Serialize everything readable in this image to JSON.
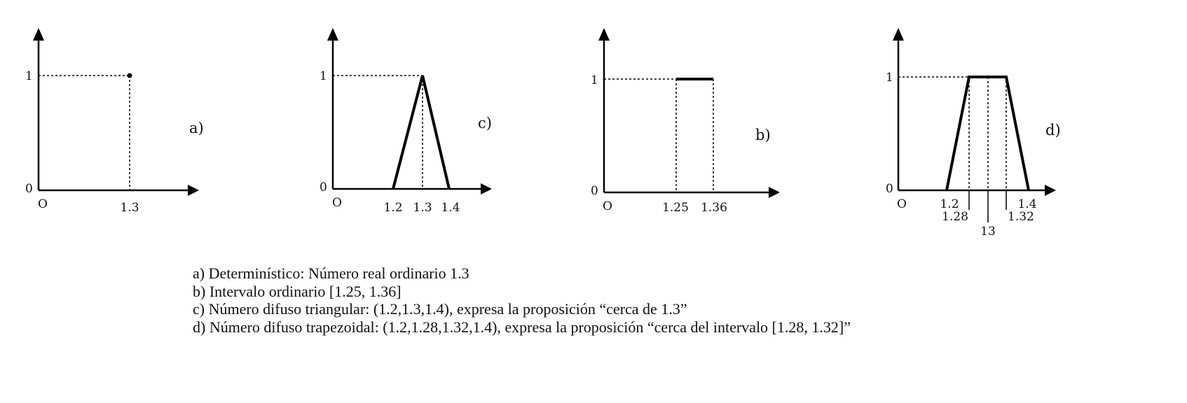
{
  "panels": {
    "a": {
      "tag": "a)",
      "y_top": "1",
      "y_zero": "0",
      "origin": "O",
      "x_labels": [
        "1.3"
      ],
      "kind": "crisp point",
      "points": [
        [
          1.3,
          1
        ]
      ]
    },
    "c": {
      "tag": "c)",
      "y_top": "1",
      "y_zero": "0",
      "origin": "O",
      "x_labels": [
        "1.2",
        "1.3",
        "1.4"
      ],
      "kind": "triangular",
      "points": [
        [
          1.2,
          0
        ],
        [
          1.3,
          1
        ],
        [
          1.4,
          0
        ]
      ]
    },
    "b": {
      "tag": "b)",
      "y_top": "1",
      "y_zero": "0",
      "origin": "O",
      "x_labels": [
        "1.25",
        "1.36"
      ],
      "kind": "interval",
      "points": [
        [
          1.25,
          1
        ],
        [
          1.36,
          1
        ]
      ]
    },
    "d": {
      "tag": "d)",
      "y_top": "1",
      "y_zero": "0",
      "origin": "O",
      "x_labels": [
        "1.2",
        "1.28",
        "1.32",
        "1.4",
        "13"
      ],
      "kind": "trapezoidal",
      "points": [
        [
          1.2,
          0
        ],
        [
          1.28,
          1
        ],
        [
          1.32,
          1
        ],
        [
          1.4,
          0
        ]
      ]
    }
  },
  "caption": {
    "line_a": "a) Determinístico: Número real ordinario 1.3",
    "line_b": "b) Intervalo ordinario [1.25, 1.36]",
    "line_c": "c) Número difuso triangular: (1.2,1.3,1.4), expresa la proposición “cerca de 1.3”",
    "line_d": "d) Número difuso trapezoidal: (1.2,1.28,1.32,1.4), expresa la proposición “cerca del intervalo [1.28, 1.32]”"
  }
}
